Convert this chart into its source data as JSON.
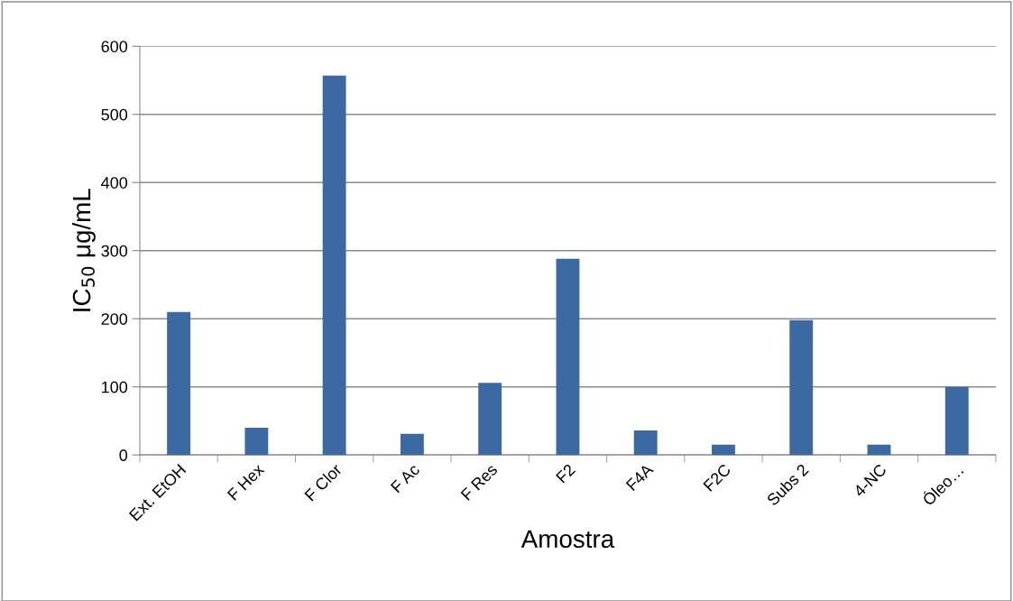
{
  "chart_data": {
    "type": "bar",
    "xlabel": "Amostra",
    "ylabel": "IC$_{50}$ μg/mL",
    "categories": [
      "Ext. EtOH",
      "F Hex",
      "F Clor",
      "F Ac",
      "F Res",
      "F2",
      "F4A",
      "F2C",
      "Subs 2",
      "4-NC",
      "Óleo…"
    ],
    "values": [
      210,
      40,
      557,
      31,
      106,
      288,
      36,
      15,
      198,
      15,
      100
    ],
    "color": "#3d69a2",
    "ylim": [
      0,
      600
    ],
    "yticks": [
      0,
      100,
      200,
      300,
      400,
      500,
      600
    ],
    "grid": "y",
    "legend": false
  }
}
